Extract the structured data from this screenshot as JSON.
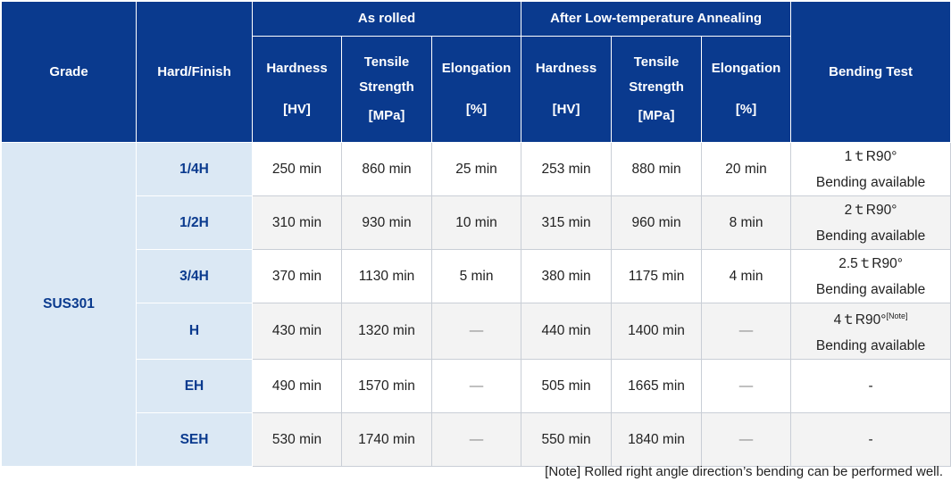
{
  "header": {
    "grade": "Grade",
    "hard_finish": "Hard/Finish",
    "as_rolled": "As rolled",
    "after_annealing": "After Low-temperature Annealing",
    "bending_test": "Bending Test",
    "hardness": "Hardness",
    "tensile_1": "Tensile",
    "tensile_2": "Strength",
    "elongation": "Elongation",
    "unit_hv": "[HV]",
    "unit_mpa": "[MPa]",
    "unit_pct": "[%]"
  },
  "grade": "SUS301",
  "rows": [
    {
      "hard": "1/4H",
      "hv": "250 min",
      "ts": "860 min",
      "el": "25 min",
      "ahv": "253 min",
      "ats": "880 min",
      "ael": "20 min",
      "bend1": "1ｔR90°",
      "bend_sup": "",
      "bend2": "Bending available"
    },
    {
      "hard": "1/2H",
      "hv": "310 min",
      "ts": "930 min",
      "el": "10 min",
      "ahv": "315 min",
      "ats": "960 min",
      "ael": "8 min",
      "bend1": "2ｔR90°",
      "bend_sup": "",
      "bend2": "Bending available"
    },
    {
      "hard": "3/4H",
      "hv": "370 min",
      "ts": "1130 min",
      "el": "5 min",
      "ahv": "380 min",
      "ats": "1175 min",
      "ael": "4 min",
      "bend1": "2.5ｔR90°",
      "bend_sup": "",
      "bend2": "Bending available"
    },
    {
      "hard": "H",
      "hv": "430 min",
      "ts": "1320 min",
      "el": "—",
      "ahv": "440 min",
      "ats": "1400 min",
      "ael": "—",
      "bend1": "4ｔR90°",
      "bend_sup": "[Note]",
      "bend2": "Bending available"
    },
    {
      "hard": "EH",
      "hv": "490 min",
      "ts": "1570 min",
      "el": "—",
      "ahv": "505 min",
      "ats": "1665 min",
      "ael": "—",
      "bend1": "-",
      "bend_sup": "",
      "bend2": ""
    },
    {
      "hard": "SEH",
      "hv": "530 min",
      "ts": "1740 min",
      "el": "—",
      "ahv": "550 min",
      "ats": "1840 min",
      "ael": "—",
      "bend1": "-",
      "bend_sup": "",
      "bend2": ""
    }
  ],
  "note": "[Note] Rolled right angle direction’s bending can be performed well."
}
